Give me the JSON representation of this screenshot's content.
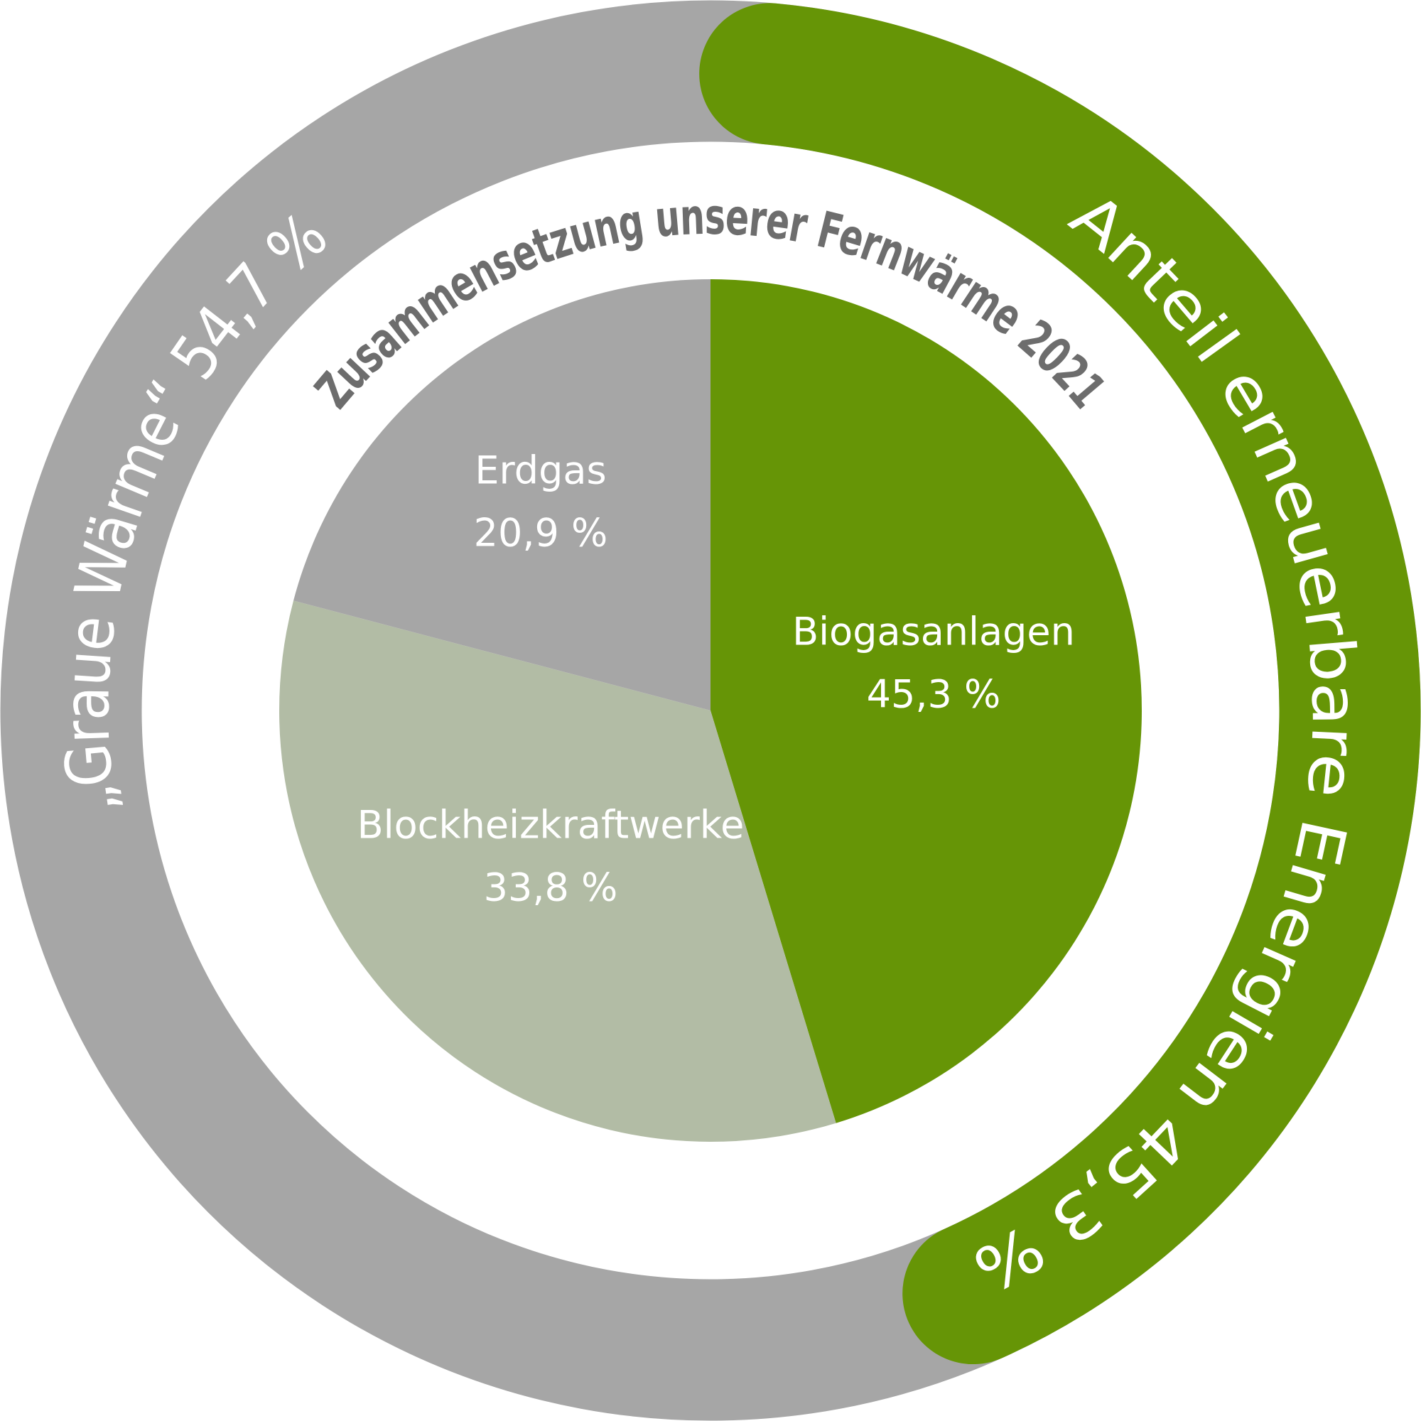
{
  "chart_data": {
    "type": "pie",
    "title": "Zusammensetzung unserer Fernwärme 2021",
    "categories": [
      "Biogasanlagen",
      "Blockheizkraftwerke",
      "Erdgas"
    ],
    "values": [
      45.3,
      33.8,
      20.9
    ],
    "value_labels": [
      "45,3 %",
      "33,8 %",
      "20,9 %"
    ],
    "colors": [
      "#669506",
      "#b2bca5",
      "#a6a6a6"
    ],
    "ring": {
      "labels": [
        "Anteil erneuerbare Energien 45,3 %",
        "„Graue Wärme“ 54,7 %"
      ],
      "values": [
        45.3,
        54.7
      ],
      "colors": [
        "#669506",
        "#a6a6a6"
      ]
    }
  }
}
